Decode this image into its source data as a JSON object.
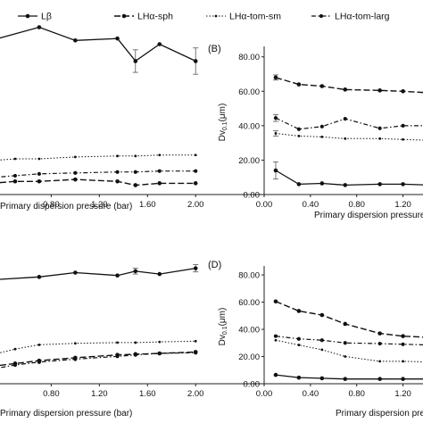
{
  "legend": [
    {
      "name": "Lβ",
      "style": "solid"
    },
    {
      "name": "LHα-sph",
      "style": "dashed"
    },
    {
      "name": "LHα-tom-sm",
      "style": "dotted"
    },
    {
      "name": "LHα-tom-larg",
      "style": "dashdot"
    }
  ],
  "chart_data": [
    {
      "type": "line",
      "panel_label": "",
      "xlabel": "Primary dispersion pressure (bar)",
      "ylabel": "",
      "x_ticks": [
        "0.80",
        "1.20",
        "1.60",
        "2.00"
      ],
      "y_ticks": [],
      "xlim": [
        0.33,
        2.08
      ],
      "ylim": [
        -2,
        92
      ],
      "series": [
        {
          "name": "Lβ",
          "style": "solid",
          "x": [
            0.3,
            0.7,
            1.0,
            1.35,
            1.5,
            1.7,
            2.0
          ],
          "y": [
            80,
            87,
            80,
            81,
            69,
            78,
            69
          ],
          "err": [
            0,
            0,
            0,
            0,
            6,
            0,
            7
          ]
        },
        {
          "name": "LHα-sph",
          "style": "dashed",
          "x": [
            0.3,
            0.5,
            0.7,
            1.0,
            1.35,
            1.5,
            1.7,
            2.0
          ],
          "y": [
            4,
            5,
            5,
            6,
            5,
            3,
            4,
            4
          ]
        },
        {
          "name": "LHα-tom-sm",
          "style": "dotted",
          "x": [
            0.3,
            0.5,
            0.7,
            1.0,
            1.35,
            1.5,
            1.7,
            2.0
          ],
          "y": [
            16,
            17,
            17,
            18,
            18.5,
            18.5,
            19,
            19
          ]
        },
        {
          "name": "LHα-tom-larg",
          "style": "dashdot",
          "x": [
            0.3,
            0.5,
            0.7,
            1.0,
            1.35,
            1.5,
            1.7,
            2.0
          ],
          "y": [
            7,
            8,
            9,
            9.5,
            10,
            10,
            10.5,
            10.5
          ]
        }
      ]
    },
    {
      "type": "line",
      "panel_label": "(B)",
      "xlabel": "Primary dispersion pressure (bar)",
      "ylabel": "Dv",
      "ylabel_sub": "0.1",
      "ylabel_unit": "(μm)",
      "x_ticks": [
        "0.00",
        "0.40",
        "0.80",
        "1.20"
      ],
      "y_ticks": [
        "0.00",
        "20.00",
        "40.00",
        "60.00",
        "80.00"
      ],
      "xlim": [
        0,
        1.45
      ],
      "ylim": [
        0,
        84
      ],
      "series": [
        {
          "name": "Lβ",
          "style": "solid",
          "x": [
            0.1,
            0.3,
            0.5,
            0.7,
            1.0,
            1.2,
            1.45
          ],
          "y": [
            14,
            6,
            6.5,
            5.5,
            6,
            6,
            5.5
          ],
          "err": [
            5,
            0,
            0,
            0,
            0,
            0,
            0
          ]
        },
        {
          "name": "LHα-sph",
          "style": "dashed",
          "x": [
            0.1,
            0.3,
            0.5,
            0.7,
            1.0,
            1.2,
            1.45
          ],
          "y": [
            68,
            64,
            63,
            61,
            60.5,
            60,
            59
          ],
          "err": [
            1.5,
            0,
            0,
            0,
            0,
            0,
            0
          ]
        },
        {
          "name": "LHα-tom-sm",
          "style": "dotted",
          "x": [
            0.1,
            0.3,
            0.5,
            0.7,
            1.0,
            1.2,
            1.45
          ],
          "y": [
            35.5,
            34,
            33.5,
            32.5,
            32.5,
            32,
            31.5
          ],
          "err": [
            1.5,
            0,
            0,
            0,
            0,
            0,
            0
          ]
        },
        {
          "name": "LHα-tom-larg",
          "style": "dashdot",
          "x": [
            0.1,
            0.3,
            0.5,
            0.7,
            1.0,
            1.2,
            1.45
          ],
          "y": [
            44.5,
            38,
            39.5,
            44,
            38.5,
            40,
            40
          ],
          "err": [
            2,
            0,
            0,
            0,
            0,
            0,
            0
          ]
        }
      ]
    },
    {
      "type": "line",
      "panel_label": "",
      "xlabel": "Primary dispersion pressure (bar)",
      "ylabel": "",
      "x_ticks": [
        "0.80",
        "1.20",
        "1.60",
        "2.00"
      ],
      "y_ticks": [],
      "xlim": [
        0.33,
        2.08
      ],
      "ylim": [
        -2,
        92
      ],
      "series": [
        {
          "name": "Lβ",
          "style": "solid",
          "x": [
            0.3,
            0.7,
            1.0,
            1.35,
            1.5,
            1.7,
            2.0
          ],
          "y": [
            70,
            72,
            75,
            73,
            76,
            74,
            78
          ],
          "err": [
            0,
            0,
            0,
            0,
            2,
            0,
            2.5
          ]
        },
        {
          "name": "LHα-sph",
          "style": "dashed",
          "x": [
            0.3,
            0.5,
            0.7,
            1.0,
            1.35,
            1.5,
            1.7,
            2.0
          ],
          "y": [
            10,
            12,
            14,
            16,
            18,
            18.5,
            19,
            20
          ]
        },
        {
          "name": "LHα-tom-sm",
          "style": "dotted",
          "x": [
            0.3,
            0.5,
            0.7,
            1.0,
            1.35,
            1.5,
            1.7,
            2.0
          ],
          "y": [
            18,
            22,
            25,
            26,
            26.5,
            26.5,
            27,
            27.5
          ]
        },
        {
          "name": "LHα-tom-larg",
          "style": "dashdot",
          "x": [
            0.3,
            0.5,
            0.7,
            1.0,
            1.35,
            1.5,
            1.7,
            2.0
          ],
          "y": [
            8,
            11,
            13,
            15,
            17,
            18,
            19,
            19.5
          ]
        }
      ]
    },
    {
      "type": "line",
      "panel_label": "(D)",
      "xlabel": "Primary dispersion pressure",
      "ylabel": "Dv",
      "ylabel_sub": "0.1",
      "ylabel_unit": "(μm)",
      "x_ticks": [
        "0.00",
        "0.40",
        "0.80",
        "1.20"
      ],
      "y_ticks": [
        "0.00",
        "20.00",
        "40.00",
        "60.00",
        "80.00"
      ],
      "xlim": [
        0,
        1.45
      ],
      "ylim": [
        0,
        84
      ],
      "series": [
        {
          "name": "Lβ",
          "style": "solid",
          "x": [
            0.1,
            0.3,
            0.5,
            0.7,
            1.0,
            1.2,
            1.45
          ],
          "y": [
            6.5,
            4.5,
            4,
            3.5,
            3.5,
            3.5,
            3.5
          ]
        },
        {
          "name": "LHα-sph",
          "style": "dashed",
          "x": [
            0.1,
            0.3,
            0.5,
            0.7,
            1.0,
            1.2,
            1.45
          ],
          "y": [
            60.5,
            53.5,
            50.5,
            44,
            37,
            35,
            34
          ]
        },
        {
          "name": "LHα-tom-sm",
          "style": "dotted",
          "x": [
            0.1,
            0.3,
            0.5,
            0.7,
            1.0,
            1.2,
            1.45
          ],
          "y": [
            32,
            28.5,
            25,
            20,
            16.5,
            16.5,
            16
          ]
        },
        {
          "name": "LHα-tom-larg",
          "style": "dashdot",
          "x": [
            0.1,
            0.3,
            0.5,
            0.7,
            1.0,
            1.2,
            1.45
          ],
          "y": [
            35,
            33,
            32,
            30,
            29.5,
            29,
            28.5
          ]
        }
      ]
    }
  ]
}
